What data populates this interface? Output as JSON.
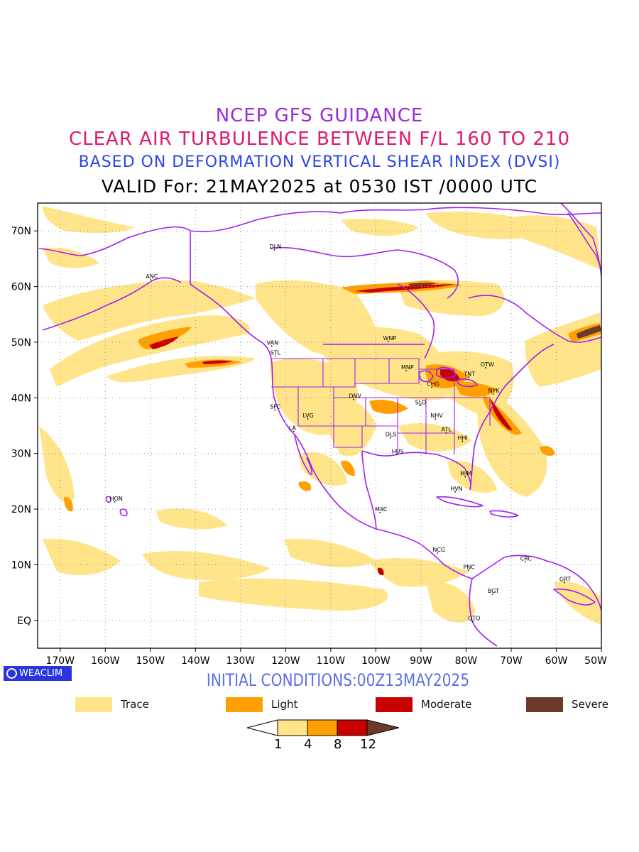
{
  "titles": {
    "line1": "NCEP GFS GUIDANCE",
    "line2": "CLEAR AIR TURBULENCE BETWEEN F/L 160 TO 210",
    "line3": "BASED ON DEFORMATION VERTICAL SHEAR INDEX (DVSI)",
    "line4": "VALID For: 21MAY2025 at 0530 IST /0000 UTC"
  },
  "axes": {
    "lat_labels": [
      "70N",
      "60N",
      "50N",
      "40N",
      "30N",
      "20N",
      "10N",
      "EQ"
    ],
    "lon_labels": [
      "170W",
      "160W",
      "150W",
      "140W",
      "130W",
      "120W",
      "110W",
      "100W",
      "90W",
      "80W",
      "70W",
      "60W",
      "50W"
    ]
  },
  "stations": [
    {
      "code": "ANC",
      "lon": -149.9,
      "lat": 61.2
    },
    {
      "code": "DLN",
      "lon": -122.5,
      "lat": 66.6
    },
    {
      "code": "VAN",
      "lon": -123.1,
      "lat": 49.3
    },
    {
      "code": "STL",
      "lon": -122.3,
      "lat": 47.5
    },
    {
      "code": "WNP",
      "lon": -97.3,
      "lat": 50.1
    },
    {
      "code": "MNP",
      "lon": -93.3,
      "lat": 44.9
    },
    {
      "code": "OTW",
      "lon": -75.7,
      "lat": 45.4
    },
    {
      "code": "TNT",
      "lon": -79.4,
      "lat": 43.7
    },
    {
      "code": "CHG",
      "lon": -87.6,
      "lat": 41.9
    },
    {
      "code": "NYK",
      "lon": -74.0,
      "lat": 40.7
    },
    {
      "code": "DNV",
      "lon": -104.9,
      "lat": 39.7
    },
    {
      "code": "SFC",
      "lon": -122.4,
      "lat": 37.8
    },
    {
      "code": "SLO",
      "lon": -90.2,
      "lat": 38.6
    },
    {
      "code": "LVG",
      "lon": -115.1,
      "lat": 36.2
    },
    {
      "code": "NHV",
      "lon": -86.8,
      "lat": 36.2
    },
    {
      "code": "LA",
      "lon": -118.2,
      "lat": 34.0
    },
    {
      "code": "ATL",
      "lon": -84.4,
      "lat": 33.7
    },
    {
      "code": "DLS",
      "lon": -96.8,
      "lat": 32.8
    },
    {
      "code": "HHI",
      "lon": -80.8,
      "lat": 32.2
    },
    {
      "code": "HUS",
      "lon": -95.4,
      "lat": 29.8
    },
    {
      "code": "MIM",
      "lon": -80.2,
      "lat": 25.8
    },
    {
      "code": "HVN",
      "lon": -82.4,
      "lat": 23.1
    },
    {
      "code": "HON",
      "lon": -157.9,
      "lat": 21.3
    },
    {
      "code": "MXC",
      "lon": -99.1,
      "lat": 19.4
    },
    {
      "code": "NCG",
      "lon": -86.3,
      "lat": 12.1
    },
    {
      "code": "CRC",
      "lon": -66.9,
      "lat": 10.5
    },
    {
      "code": "PNC",
      "lon": -79.5,
      "lat": 9.0
    },
    {
      "code": "GRT",
      "lon": -58.2,
      "lat": 6.8
    },
    {
      "code": "BGT",
      "lon": -74.1,
      "lat": 4.7
    },
    {
      "code": "QTO",
      "lon": -78.5,
      "lat": -0.2
    }
  ],
  "badge": {
    "text": "WEACLIM"
  },
  "initial_conditions": "INITIAL CONDITIONS:00Z13MAY2025",
  "legend": [
    {
      "label": "Trace",
      "color": "#ffe48a"
    },
    {
      "label": "Light",
      "color": "#ffa000"
    },
    {
      "label": "Moderate",
      "color": "#c80000"
    },
    {
      "label": "Severe",
      "color": "#6b3a2a"
    }
  ],
  "colorbar": {
    "labels": [
      "1",
      "4",
      "8",
      "12"
    ],
    "colors": [
      "#ffffff",
      "#ffe48a",
      "#ffa000",
      "#c80000",
      "#6b3a2a"
    ]
  },
  "colors": {
    "coastline": "#a020f0",
    "trace": "#ffe48a",
    "light": "#ffa000",
    "moderate": "#c80000",
    "severe": "#6b3a2a"
  }
}
